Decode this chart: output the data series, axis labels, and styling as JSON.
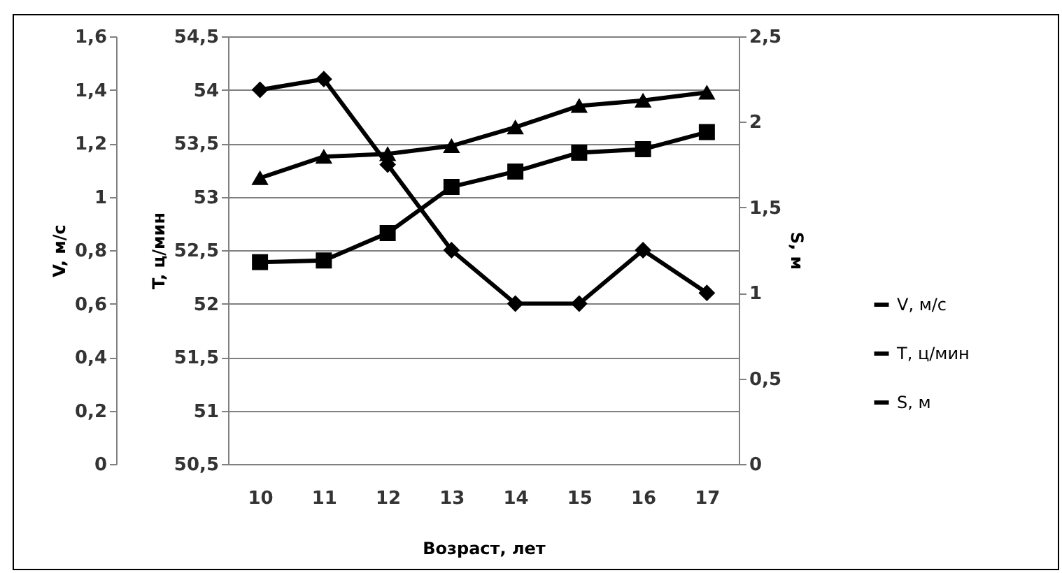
{
  "chart_data": {
    "type": "line",
    "categories": [
      "10",
      "11",
      "12",
      "13",
      "14",
      "15",
      "16",
      "17"
    ],
    "xlabel": "Возраст, лет",
    "ylabel": "T, ц/мин",
    "y2label": "S, м",
    "y3label": "V, м/с",
    "series": [
      {
        "name": "V, м/с",
        "color": "#000000",
        "marker": "triangle",
        "axis": "y3",
        "values": [
          1.07,
          1.15,
          1.16,
          1.19,
          1.26,
          1.34,
          1.36,
          1.39
        ]
      },
      {
        "name": "T, ц/мин",
        "color": "#000000",
        "marker": "diamond",
        "axis": "y",
        "values": [
          54.0,
          54.1,
          53.3,
          52.5,
          52.0,
          52.0,
          52.5,
          52.1
        ]
      },
      {
        "name": "S, м",
        "color": "#000000",
        "marker": "square",
        "axis": "y2",
        "values": [
          1.18,
          1.19,
          1.35,
          1.62,
          1.71,
          1.82,
          1.84,
          1.94
        ]
      }
    ],
    "ylim": [
      50.5,
      54.5
    ],
    "yticks": [
      {
        "value": 50.5,
        "label": "50,5"
      },
      51,
      {
        "value": 51.5,
        "label": "51,5"
      },
      52,
      {
        "value": 52.5,
        "label": "52,5"
      },
      53,
      {
        "value": 53.5,
        "label": "53,5"
      },
      54,
      {
        "value": 54.5,
        "label": "54,5"
      }
    ],
    "y2lim": [
      0,
      2.5
    ],
    "y2ticks": [
      0,
      {
        "value": 0.5,
        "label": "0,5"
      },
      1,
      {
        "value": 1.5,
        "label": "1,5"
      },
      2,
      {
        "value": 2.5,
        "label": "2,5"
      }
    ],
    "y3lim": [
      0,
      1.6
    ],
    "y3ticks": [
      0,
      {
        "value": 0.2,
        "label": "0,2"
      },
      {
        "value": 0.4,
        "label": "0,4"
      },
      {
        "value": 0.6,
        "label": "0,6"
      },
      {
        "value": 0.8,
        "label": "0,8"
      },
      1,
      {
        "value": 1.2,
        "label": "1,2"
      },
      {
        "value": 1.4,
        "label": "1,4"
      },
      {
        "value": 1.6,
        "label": "1,6"
      }
    ],
    "grid": "y",
    "legend": "right",
    "line_style": "solid"
  }
}
